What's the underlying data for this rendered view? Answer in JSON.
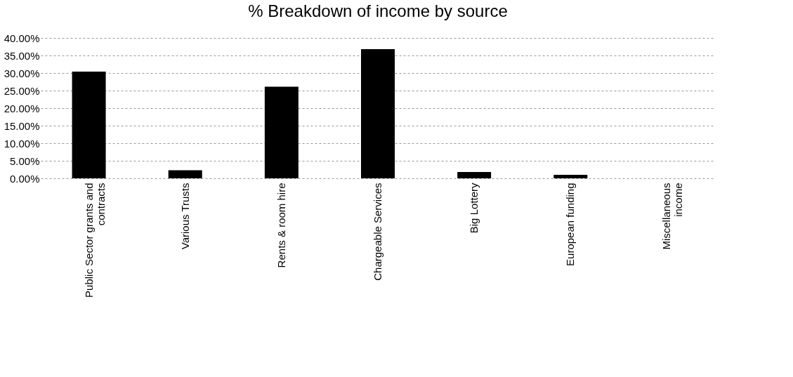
{
  "chart_data": {
    "type": "bar",
    "title": "% Breakdown of income by source",
    "categories": [
      "Public Sector grants and contracts",
      "Various Trusts",
      "Rents & room hire",
      "Chargeable Services",
      "Big Lottery",
      "European funding",
      "Miscellaneous income"
    ],
    "values": [
      30.4,
      2.3,
      26.1,
      36.8,
      1.8,
      1.0,
      0
    ],
    "color": "#000000",
    "ylim": [
      0,
      40
    ],
    "yticks": [
      {
        "value": 0,
        "label": "0.00%"
      },
      {
        "value": 5,
        "label": "5.00%"
      },
      {
        "value": 10,
        "label": "10.00%"
      },
      {
        "value": 15,
        "label": "15.00%"
      },
      {
        "value": 20,
        "label": "20.00%"
      },
      {
        "value": 25,
        "label": "25.00%"
      },
      {
        "value": 30,
        "label": "30.00%"
      },
      {
        "value": 35,
        "label": "35.00%"
      },
      {
        "value": 40,
        "label": "40.00%"
      }
    ],
    "grid": "y"
  }
}
